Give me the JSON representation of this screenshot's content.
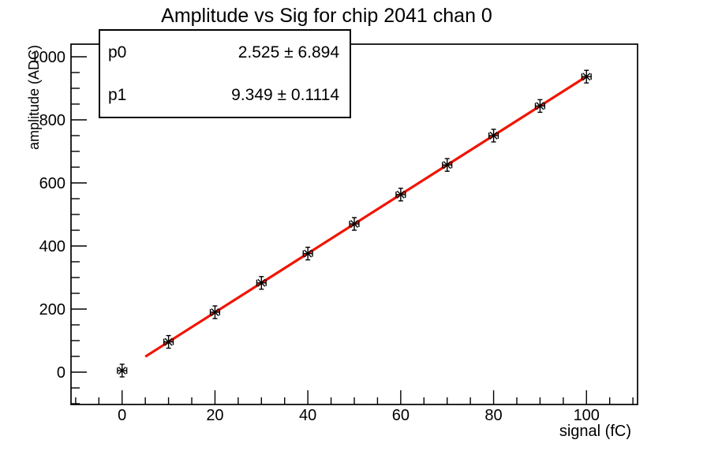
{
  "title": "Amplitude vs Sig for chip 2041 chan 0",
  "stats": {
    "rows": [
      {
        "param": "p0",
        "value": "2.525 ± 6.894"
      },
      {
        "param": "p1",
        "value": "9.349 ± 0.1114"
      }
    ]
  },
  "chart_data": {
    "type": "scatter",
    "title": "Amplitude vs Sig for chip 2041 chan 0",
    "xlabel": "signal (fC)",
    "ylabel": "amplitude (ADC)",
    "xlim": [
      -11,
      111
    ],
    "ylim": [
      -102.5,
      1040
    ],
    "x_major_ticks": [
      0,
      20,
      40,
      60,
      80,
      100
    ],
    "x_minor_step": 5,
    "y_major_ticks": [
      0,
      200,
      400,
      600,
      800,
      1000
    ],
    "y_minor_step": 50,
    "grid": false,
    "legend": "none",
    "points": {
      "x": [
        0,
        10,
        20,
        30,
        40,
        50,
        60,
        70,
        80,
        90,
        100
      ],
      "y": [
        5,
        96,
        190,
        283,
        376,
        470,
        563,
        657,
        750,
        844,
        937
      ],
      "x_error": 1,
      "y_error": 20,
      "marker": "asterisk-with-error-caps",
      "marker_color": "#000000"
    },
    "fit": {
      "p0": 2.525,
      "p0_error": 6.894,
      "p1": 9.349,
      "p1_error": 0.1114,
      "x_start": 5,
      "x_end": 100,
      "line_color": "#f01400",
      "line_width": 3.2
    },
    "colors": {
      "frame": "#000000",
      "background": "#ffffff",
      "text": "#000000"
    }
  }
}
